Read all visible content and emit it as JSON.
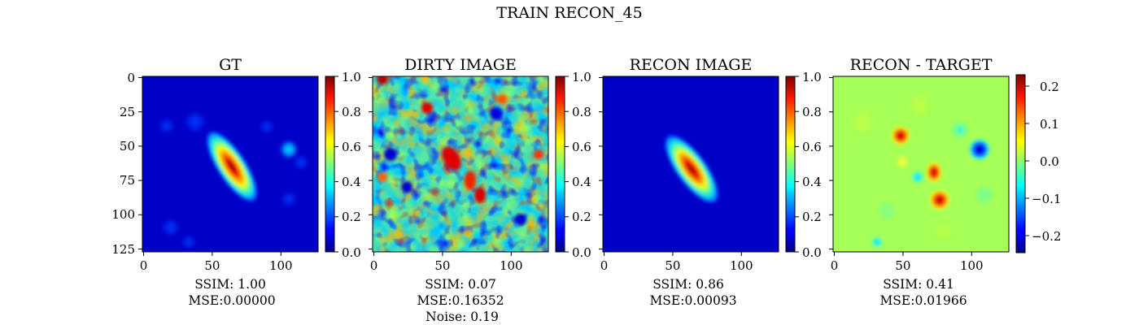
{
  "figure": {
    "title": "TRAIN RECON_45"
  },
  "chart_data": [
    {
      "type": "heatmap",
      "title": "GT",
      "colormap": "jet",
      "xlim": [
        0,
        128
      ],
      "ylim": [
        0,
        128
      ],
      "x_ticks": [
        0,
        50,
        100
      ],
      "y_ticks": [
        0,
        25,
        50,
        75,
        100,
        125
      ],
      "colorbar": {
        "min": 0.0,
        "max": 1.0,
        "ticks": [
          "0.0",
          "0.2",
          "0.4",
          "0.6",
          "0.8",
          "1.0"
        ]
      },
      "caption": [
        "SSIM: 1.00",
        "MSE:0.00000"
      ]
    },
    {
      "type": "heatmap",
      "title": "DIRTY IMAGE",
      "colormap": "jet",
      "xlim": [
        0,
        128
      ],
      "ylim": [
        0,
        128
      ],
      "x_ticks": [
        0,
        50,
        100
      ],
      "colorbar": {
        "min": 0.0,
        "max": 1.0,
        "ticks": [
          "0.0",
          "0.2",
          "0.4",
          "0.6",
          "0.8",
          "1.0"
        ]
      },
      "caption": [
        "SSIM: 0.07",
        "MSE:0.16352",
        "Noise: 0.19"
      ]
    },
    {
      "type": "heatmap",
      "title": "RECON IMAGE",
      "colormap": "jet",
      "xlim": [
        0,
        128
      ],
      "ylim": [
        0,
        128
      ],
      "x_ticks": [
        0,
        50,
        100
      ],
      "colorbar": {
        "min": 0.0,
        "max": 1.0,
        "ticks": [
          "0.0",
          "0.2",
          "0.4",
          "0.6",
          "0.8",
          "1.0"
        ]
      },
      "caption": [
        "SSIM: 0.86",
        "MSE:0.00093"
      ]
    },
    {
      "type": "heatmap",
      "title": "RECON - TARGET",
      "colormap": "jet",
      "xlim": [
        0,
        128
      ],
      "ylim": [
        0,
        128
      ],
      "x_ticks": [
        0,
        50,
        100
      ],
      "colorbar": {
        "min": -0.25,
        "max": 0.23,
        "ticks": [
          "0.2",
          "0.1",
          "0.0",
          "−0.1",
          "−0.2"
        ],
        "tick_values": [
          0.2,
          0.1,
          0.0,
          -0.1,
          -0.2
        ]
      },
      "caption": [
        "SSIM: 0.41",
        "MSE:0.01966"
      ]
    }
  ]
}
